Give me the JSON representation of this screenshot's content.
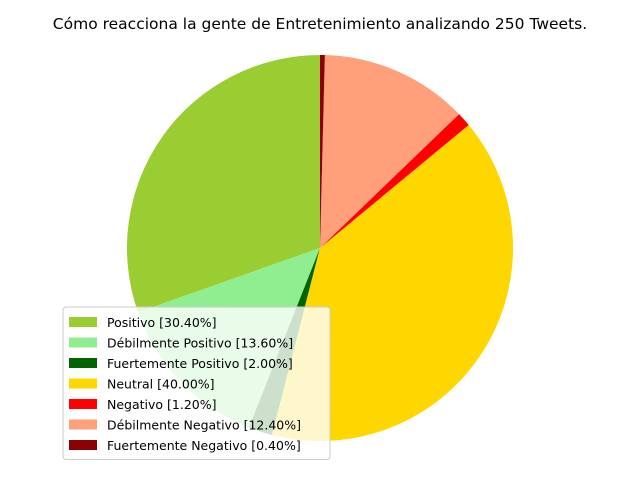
{
  "chart_data": {
    "type": "pie",
    "title": "Cómo reacciona la gente de Entretenimiento analizando 250 Tweets.",
    "legend_position": "lower-left",
    "slices": [
      {
        "label": "Positivo [30.40%]",
        "value": 30.4,
        "color": "#9acd32"
      },
      {
        "label": "Débilmente Positivo [13.60%]",
        "value": 13.6,
        "color": "#90ee90"
      },
      {
        "label": "Fuertemente Positivo [2.00%]",
        "value": 2.0,
        "color": "#006400"
      },
      {
        "label": "Neutral [40.00%]",
        "value": 40.0,
        "color": "#ffd700"
      },
      {
        "label": "Negativo [1.20%]",
        "value": 1.2,
        "color": "#ff0000"
      },
      {
        "label": "Débilmente Negativo [12.40%]",
        "value": 12.4,
        "color": "#ffa07a"
      },
      {
        "label": "Fuertemente Negativo [0.40%]",
        "value": 0.4,
        "color": "#8b0000"
      }
    ]
  }
}
